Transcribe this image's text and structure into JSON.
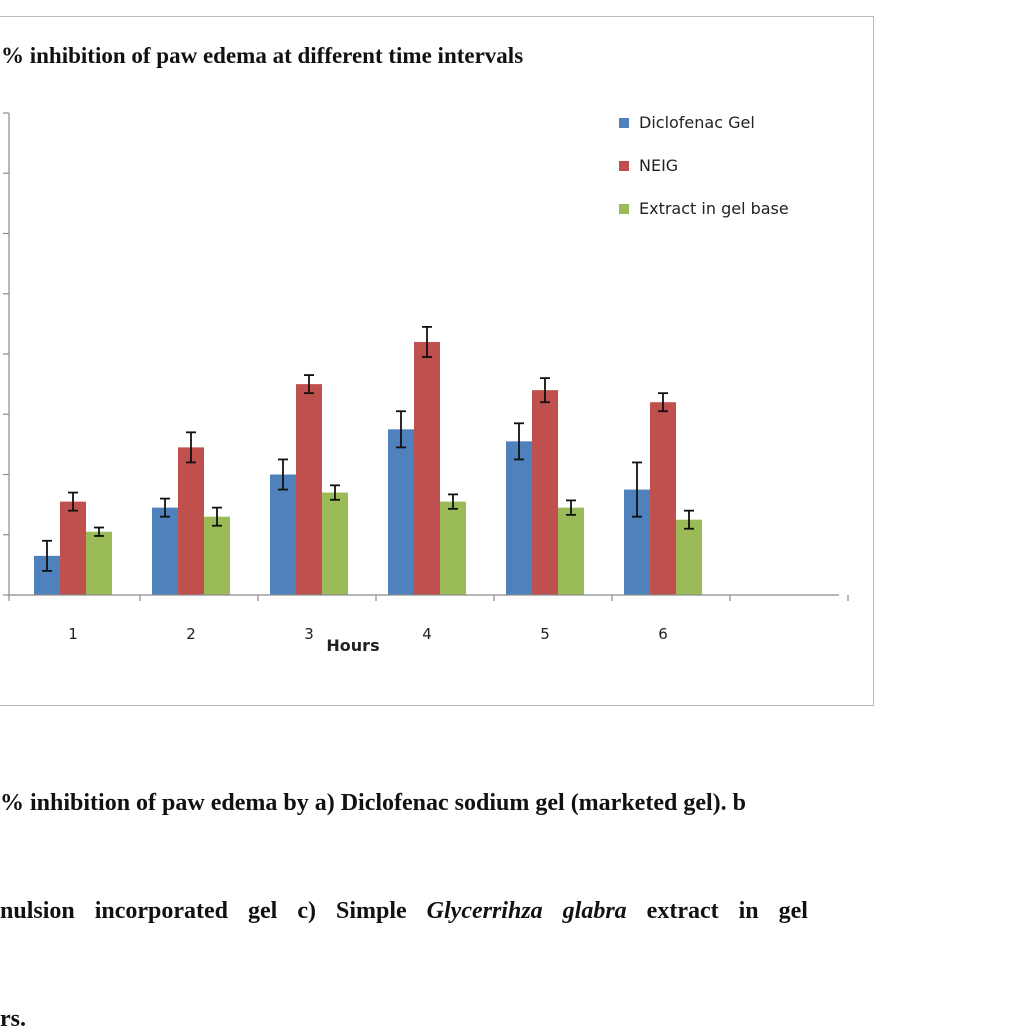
{
  "chart_data": {
    "type": "bar",
    "title": "% inhibition  of paw edema at different time  intervals",
    "xlabel": "Hours",
    "ylabel": "",
    "categories": [
      "1",
      "2",
      "3",
      "4",
      "5",
      "6"
    ],
    "ylim": [
      0,
      80
    ],
    "series": [
      {
        "name": "Diclofenac Gel",
        "color": "#4f81bd",
        "values": [
          6.5,
          14.5,
          20,
          27.5,
          25.5,
          17.5
        ],
        "errors": [
          2.5,
          1.5,
          2.5,
          3,
          3,
          4.5
        ]
      },
      {
        "name": "NEIG",
        "color": "#c0504d",
        "values": [
          15.5,
          24.5,
          35,
          42,
          34,
          32
        ],
        "errors": [
          1.5,
          2.5,
          1.5,
          2.5,
          2,
          1.5
        ]
      },
      {
        "name": "Extract in gel base",
        "color": "#9bbb59",
        "values": [
          10.5,
          13,
          17,
          15.5,
          14.5,
          12.5
        ],
        "errors": [
          0.7,
          1.5,
          1.2,
          1.2,
          1.2,
          1.5
        ]
      }
    ],
    "legend_position": "top-right",
    "grid": false,
    "error_bars": true
  },
  "caption": {
    "line1": "% inhibition  of paw edema by a) Diclofenac sodium gel (marketed gel). b",
    "line2_pre": "nulsion  incorporated  gel  c)  Simple  ",
    "line2_species": "Glycerrihza glabra",
    "line2_post": "  extract  in  gel",
    "line3": "rs."
  }
}
